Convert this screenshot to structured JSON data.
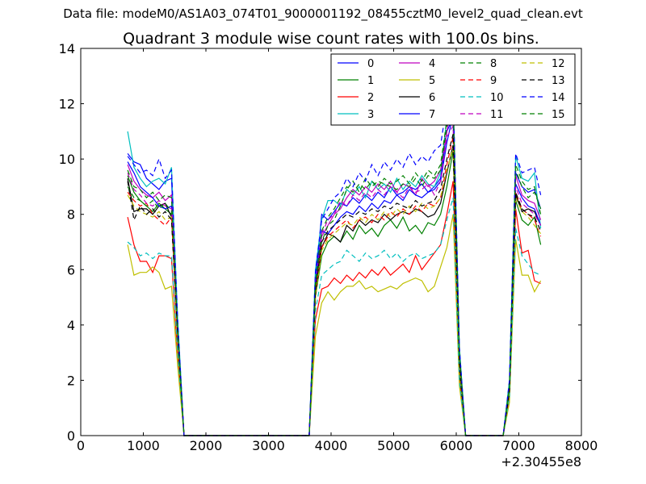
{
  "supertitle": "Data file: modeM0/AS1A03_074T01_9000001192_08455cztM0_level2_quad_clean.evt",
  "chart_data": {
    "type": "line",
    "title": "Quadrant 3 module wise count rates with 100.0s bins.",
    "xlabel": "",
    "ylabel": "",
    "x_offset_label": "+2.30455e8",
    "xlim": [
      0,
      8000
    ],
    "ylim": [
      0,
      14
    ],
    "x_ticks": [
      0,
      1000,
      2000,
      3000,
      4000,
      5000,
      6000,
      7000,
      8000
    ],
    "y_ticks": [
      0,
      2,
      4,
      6,
      8,
      10,
      12,
      14
    ],
    "grid": false,
    "legend_position": "top-right",
    "x": [
      750,
      850,
      950,
      1050,
      1150,
      1250,
      1350,
      1450,
      1550,
      1650,
      1750,
      3650,
      3750,
      3850,
      3950,
      4050,
      4150,
      4250,
      4350,
      4450,
      4550,
      4650,
      4750,
      4850,
      4950,
      5050,
      5150,
      5250,
      5350,
      5450,
      5550,
      5650,
      5750,
      5850,
      5950,
      6050,
      6150,
      6750,
      6850,
      6950,
      7050,
      7150,
      7250,
      7350
    ],
    "series": [
      {
        "name": "0",
        "color": "#0000ff",
        "dash": "solid",
        "values": [
          10.2,
          9.9,
          9.8,
          9.3,
          9.1,
          8.9,
          9.2,
          9.3,
          4.0,
          0.0,
          0.0,
          0.0,
          5.6,
          8.0,
          7.8,
          8.1,
          8.4,
          8.3,
          8.6,
          8.4,
          8.7,
          8.5,
          8.8,
          8.6,
          9.0,
          8.7,
          8.8,
          9.0,
          8.9,
          9.1,
          8.8,
          9.0,
          9.3,
          11.0,
          11.5,
          3.0,
          0.0,
          0.0,
          1.8,
          9.5,
          9.0,
          8.8,
          8.9,
          8.2
        ]
      },
      {
        "name": "1",
        "color": "#008000",
        "dash": "solid",
        "values": [
          9.4,
          8.8,
          8.5,
          8.3,
          8.1,
          8.4,
          8.2,
          8.0,
          3.5,
          0.0,
          0.0,
          0.0,
          5.0,
          6.5,
          7.0,
          7.2,
          7.0,
          7.4,
          7.1,
          7.6,
          7.3,
          7.5,
          7.2,
          7.6,
          7.8,
          7.5,
          7.9,
          7.4,
          7.6,
          7.3,
          7.7,
          7.6,
          8.0,
          9.0,
          10.3,
          2.4,
          0.0,
          0.0,
          1.5,
          8.5,
          7.8,
          7.6,
          7.9,
          6.9
        ]
      },
      {
        "name": "2",
        "color": "#ff0000",
        "dash": "solid",
        "values": [
          7.9,
          6.9,
          6.3,
          6.3,
          5.9,
          6.5,
          6.5,
          6.4,
          2.8,
          0.0,
          0.0,
          0.0,
          4.2,
          5.3,
          5.4,
          5.7,
          5.5,
          5.8,
          5.6,
          5.9,
          5.7,
          6.0,
          5.8,
          6.1,
          5.8,
          6.0,
          6.2,
          5.9,
          6.5,
          6.0,
          6.3,
          6.6,
          6.9,
          8.0,
          9.2,
          2.0,
          0.0,
          0.0,
          1.4,
          8.2,
          6.6,
          6.7,
          5.6,
          5.5
        ]
      },
      {
        "name": "3",
        "color": "#00bfbf",
        "dash": "solid",
        "values": [
          11.0,
          9.7,
          9.3,
          9.0,
          9.2,
          9.3,
          9.1,
          9.7,
          4.2,
          0.0,
          0.0,
          0.0,
          6.0,
          7.8,
          8.5,
          8.5,
          8.3,
          8.9,
          8.7,
          9.0,
          8.6,
          9.2,
          8.9,
          9.1,
          8.8,
          9.3,
          8.9,
          9.2,
          9.0,
          9.4,
          9.1,
          9.0,
          9.5,
          11.5,
          12.5,
          3.2,
          0.0,
          0.0,
          2.0,
          10.1,
          9.3,
          9.2,
          9.5,
          7.5
        ]
      },
      {
        "name": "4",
        "color": "#bf00bf",
        "dash": "solid",
        "values": [
          9.8,
          9.2,
          8.9,
          8.7,
          8.6,
          8.8,
          8.5,
          8.7,
          3.8,
          0.0,
          0.0,
          0.0,
          5.4,
          7.2,
          7.6,
          8.0,
          8.2,
          8.6,
          8.9,
          8.7,
          9.0,
          8.8,
          9.1,
          8.9,
          9.2,
          8.8,
          9.1,
          9.0,
          8.7,
          9.3,
          9.0,
          9.2,
          9.6,
          11.0,
          12.2,
          2.8,
          0.0,
          0.0,
          1.7,
          9.4,
          8.7,
          8.5,
          8.4,
          7.8
        ]
      },
      {
        "name": "5",
        "color": "#bfbf00",
        "dash": "solid",
        "values": [
          6.9,
          5.8,
          5.9,
          5.9,
          6.1,
          5.9,
          5.3,
          5.4,
          2.5,
          0.0,
          0.0,
          0.0,
          3.6,
          4.8,
          5.2,
          4.9,
          5.2,
          5.4,
          5.4,
          5.6,
          5.3,
          5.4,
          5.2,
          5.3,
          5.4,
          5.3,
          5.5,
          5.6,
          5.7,
          5.6,
          5.2,
          5.4,
          6.1,
          6.8,
          8.0,
          1.8,
          0.0,
          0.0,
          1.2,
          7.1,
          5.8,
          5.8,
          5.2,
          5.6
        ]
      },
      {
        "name": "6",
        "color": "#000000",
        "dash": "solid",
        "values": [
          9.3,
          8.1,
          8.2,
          8.2,
          8.0,
          8.3,
          8.4,
          7.9,
          3.6,
          0.0,
          0.0,
          0.0,
          5.2,
          6.8,
          7.3,
          7.2,
          7.0,
          7.6,
          7.4,
          7.8,
          7.6,
          7.8,
          7.7,
          8.0,
          7.8,
          8.0,
          8.1,
          8.0,
          8.2,
          8.1,
          7.9,
          8.0,
          8.4,
          9.5,
          10.5,
          2.5,
          0.0,
          0.0,
          1.6,
          8.7,
          8.1,
          8.2,
          8.1,
          7.6
        ]
      },
      {
        "name": "7",
        "color": "#0000ff",
        "dash": "solid",
        "values": [
          9.9,
          9.5,
          9.0,
          8.8,
          8.6,
          8.3,
          8.2,
          8.3,
          3.7,
          0.0,
          0.0,
          0.0,
          5.6,
          7.4,
          7.3,
          7.6,
          7.9,
          8.1,
          8.0,
          8.3,
          8.1,
          8.4,
          8.2,
          8.5,
          8.4,
          8.7,
          8.5,
          8.9,
          8.7,
          8.6,
          8.8,
          8.9,
          9.2,
          10.6,
          11.6,
          2.9,
          0.0,
          0.0,
          1.8,
          9.1,
          8.6,
          8.3,
          8.2,
          7.6
        ]
      },
      {
        "name": "8",
        "color": "#008000",
        "dash": "dashed",
        "values": [
          9.0,
          8.6,
          8.5,
          8.3,
          8.5,
          8.2,
          8.4,
          8.1,
          3.6,
          0.0,
          0.0,
          0.0,
          5.3,
          7.0,
          7.6,
          7.8,
          8.3,
          8.9,
          9.2,
          8.8,
          9.3,
          9.0,
          9.2,
          9.1,
          9.0,
          8.9,
          9.1,
          9.0,
          9.3,
          9.0,
          9.4,
          9.3,
          9.6,
          11.2,
          12.1,
          2.9,
          0.0,
          0.0,
          1.8,
          9.6,
          9.0,
          8.6,
          8.8,
          8.2
        ]
      },
      {
        "name": "9",
        "color": "#ff0000",
        "dash": "dashed",
        "values": [
          8.8,
          8.5,
          8.3,
          8.4,
          8.0,
          7.8,
          7.6,
          7.9,
          3.5,
          0.0,
          0.0,
          0.0,
          5.1,
          6.8,
          7.2,
          7.4,
          7.6,
          7.8,
          7.5,
          7.8,
          7.9,
          7.7,
          8.0,
          7.8,
          8.1,
          7.9,
          8.2,
          8.0,
          8.3,
          8.1,
          8.4,
          8.3,
          8.6,
          9.8,
          10.8,
          2.6,
          0.0,
          0.0,
          1.6,
          8.8,
          8.2,
          8.0,
          7.8,
          7.2
        ]
      },
      {
        "name": "10",
        "color": "#00bfbf",
        "dash": "dashed",
        "values": [
          7.0,
          6.8,
          6.5,
          6.6,
          6.4,
          6.6,
          6.5,
          6.5,
          3.0,
          0.0,
          0.0,
          0.0,
          4.5,
          5.8,
          6.0,
          6.2,
          6.3,
          6.7,
          6.5,
          6.3,
          6.6,
          6.4,
          6.5,
          6.7,
          6.4,
          6.6,
          6.3,
          6.5,
          6.6,
          6.4,
          6.5,
          6.6,
          6.9,
          7.8,
          8.6,
          2.0,
          0.0,
          0.0,
          1.4,
          7.5,
          6.5,
          6.2,
          5.9,
          5.8
        ]
      },
      {
        "name": "11",
        "color": "#bf00bf",
        "dash": "dashed",
        "values": [
          9.5,
          8.9,
          8.7,
          8.4,
          8.3,
          8.5,
          8.3,
          8.2,
          3.7,
          0.0,
          0.0,
          0.0,
          5.4,
          7.3,
          7.8,
          8.0,
          8.5,
          8.3,
          8.7,
          8.5,
          8.8,
          8.6,
          8.9,
          8.7,
          9.0,
          8.8,
          8.6,
          9.0,
          8.8,
          8.9,
          9.1,
          8.7,
          9.2,
          10.8,
          11.2,
          2.8,
          0.0,
          0.0,
          1.7,
          9.0,
          8.4,
          8.2,
          8.0,
          7.6
        ]
      },
      {
        "name": "12",
        "color": "#bfbf00",
        "dash": "dashed",
        "values": [
          8.7,
          8.3,
          8.1,
          8.0,
          7.9,
          8.1,
          7.8,
          7.9,
          3.5,
          0.0,
          0.0,
          0.0,
          5.0,
          6.7,
          7.1,
          7.3,
          7.5,
          7.7,
          7.6,
          7.9,
          7.7,
          8.0,
          7.8,
          8.1,
          7.9,
          8.2,
          8.0,
          8.3,
          8.1,
          8.4,
          8.2,
          8.3,
          8.6,
          9.6,
          10.4,
          2.5,
          0.0,
          0.0,
          1.6,
          8.6,
          8.1,
          7.9,
          7.6,
          7.3
        ]
      },
      {
        "name": "13",
        "color": "#000000",
        "dash": "dashed",
        "values": [
          9.2,
          7.8,
          8.3,
          8.0,
          8.2,
          7.9,
          8.1,
          7.8,
          3.6,
          0.0,
          0.0,
          0.0,
          5.2,
          7.0,
          7.4,
          7.6,
          7.8,
          8.0,
          7.9,
          8.1,
          8.0,
          8.2,
          8.1,
          8.3,
          8.2,
          8.4,
          8.3,
          8.2,
          8.5,
          8.3,
          8.4,
          8.5,
          8.9,
          10.0,
          10.9,
          2.7,
          0.0,
          0.0,
          1.6,
          8.8,
          8.2,
          8.0,
          7.9,
          7.4
        ]
      },
      {
        "name": "14",
        "color": "#0000ff",
        "dash": "dashed",
        "values": [
          10.1,
          9.8,
          9.5,
          9.6,
          9.4,
          10.0,
          9.3,
          9.6,
          4.1,
          0.0,
          0.0,
          0.0,
          5.9,
          7.8,
          8.2,
          8.6,
          8.8,
          9.3,
          9.0,
          9.5,
          9.2,
          9.8,
          9.4,
          9.9,
          9.6,
          10.0,
          9.7,
          10.2,
          9.8,
          10.1,
          9.9,
          10.3,
          10.5,
          12.0,
          12.6,
          3.2,
          0.0,
          0.0,
          2.0,
          10.2,
          9.5,
          9.6,
          9.7,
          8.7
        ]
      },
      {
        "name": "15",
        "color": "#008000",
        "dash": "dashed",
        "values": [
          9.6,
          9.0,
          8.9,
          8.6,
          8.8,
          8.5,
          8.7,
          8.6,
          3.8,
          0.0,
          0.0,
          0.0,
          5.5,
          7.4,
          7.9,
          8.2,
          8.6,
          9.0,
          8.8,
          9.1,
          8.9,
          9.2,
          9.0,
          9.3,
          9.1,
          9.2,
          9.4,
          9.1,
          9.5,
          9.2,
          9.6,
          9.4,
          9.8,
          11.4,
          12.0,
          3.0,
          0.0,
          0.0,
          1.8,
          9.8,
          9.2,
          8.9,
          9.0,
          8.0
        ]
      }
    ]
  }
}
